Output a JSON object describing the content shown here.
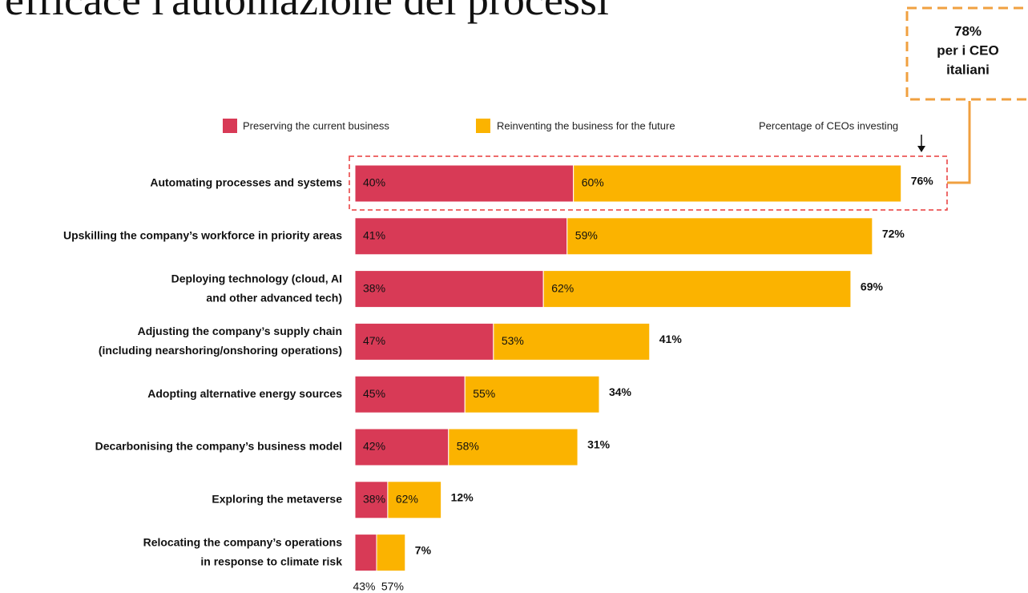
{
  "title": "efficace l'automazione dei processi",
  "callout": [
    "78%",
    "per i CEO",
    "italiani"
  ],
  "chart_data": {
    "type": "stacked-share-bar",
    "categories": [
      [
        "Automating processes and systems"
      ],
      [
        "Upskilling the company’s workforce in priority areas"
      ],
      [
        "Deploying technology (cloud, AI",
        "and other advanced tech)"
      ],
      [
        "Adjusting the company’s supply chain",
        "(including nearshoring/onshoring operations)"
      ],
      [
        "Adopting alternative energy sources"
      ],
      [
        "Decarbonising the company’s business model"
      ],
      [
        "Exploring the metaverse"
      ],
      [
        "Relocating the company’s operations",
        "in response to climate risk"
      ]
    ],
    "series": [
      {
        "name": "Preserving the current business",
        "color": "#d83a56",
        "values": [
          40,
          41,
          38,
          47,
          45,
          42,
          38,
          43
        ],
        "value_labels": [
          "40%",
          "41%",
          "38%",
          "47%",
          "45%",
          "42%",
          "38%",
          "43%"
        ]
      },
      {
        "name": "Reinventing the business for the future",
        "color": "#fbb300",
        "values": [
          60,
          59,
          62,
          53,
          55,
          58,
          62,
          57
        ],
        "value_labels": [
          "60%",
          "59%",
          "62%",
          "53%",
          "55%",
          "58%",
          "62%",
          "57%"
        ]
      }
    ],
    "totals": {
      "name": "Percentage of CEOs investing",
      "values": [
        76,
        72,
        69,
        41,
        34,
        31,
        12,
        7
      ],
      "value_labels": [
        "76%",
        "72%",
        "69%",
        "41%",
        "34%",
        "31%",
        "12%",
        "7%"
      ]
    }
  }
}
